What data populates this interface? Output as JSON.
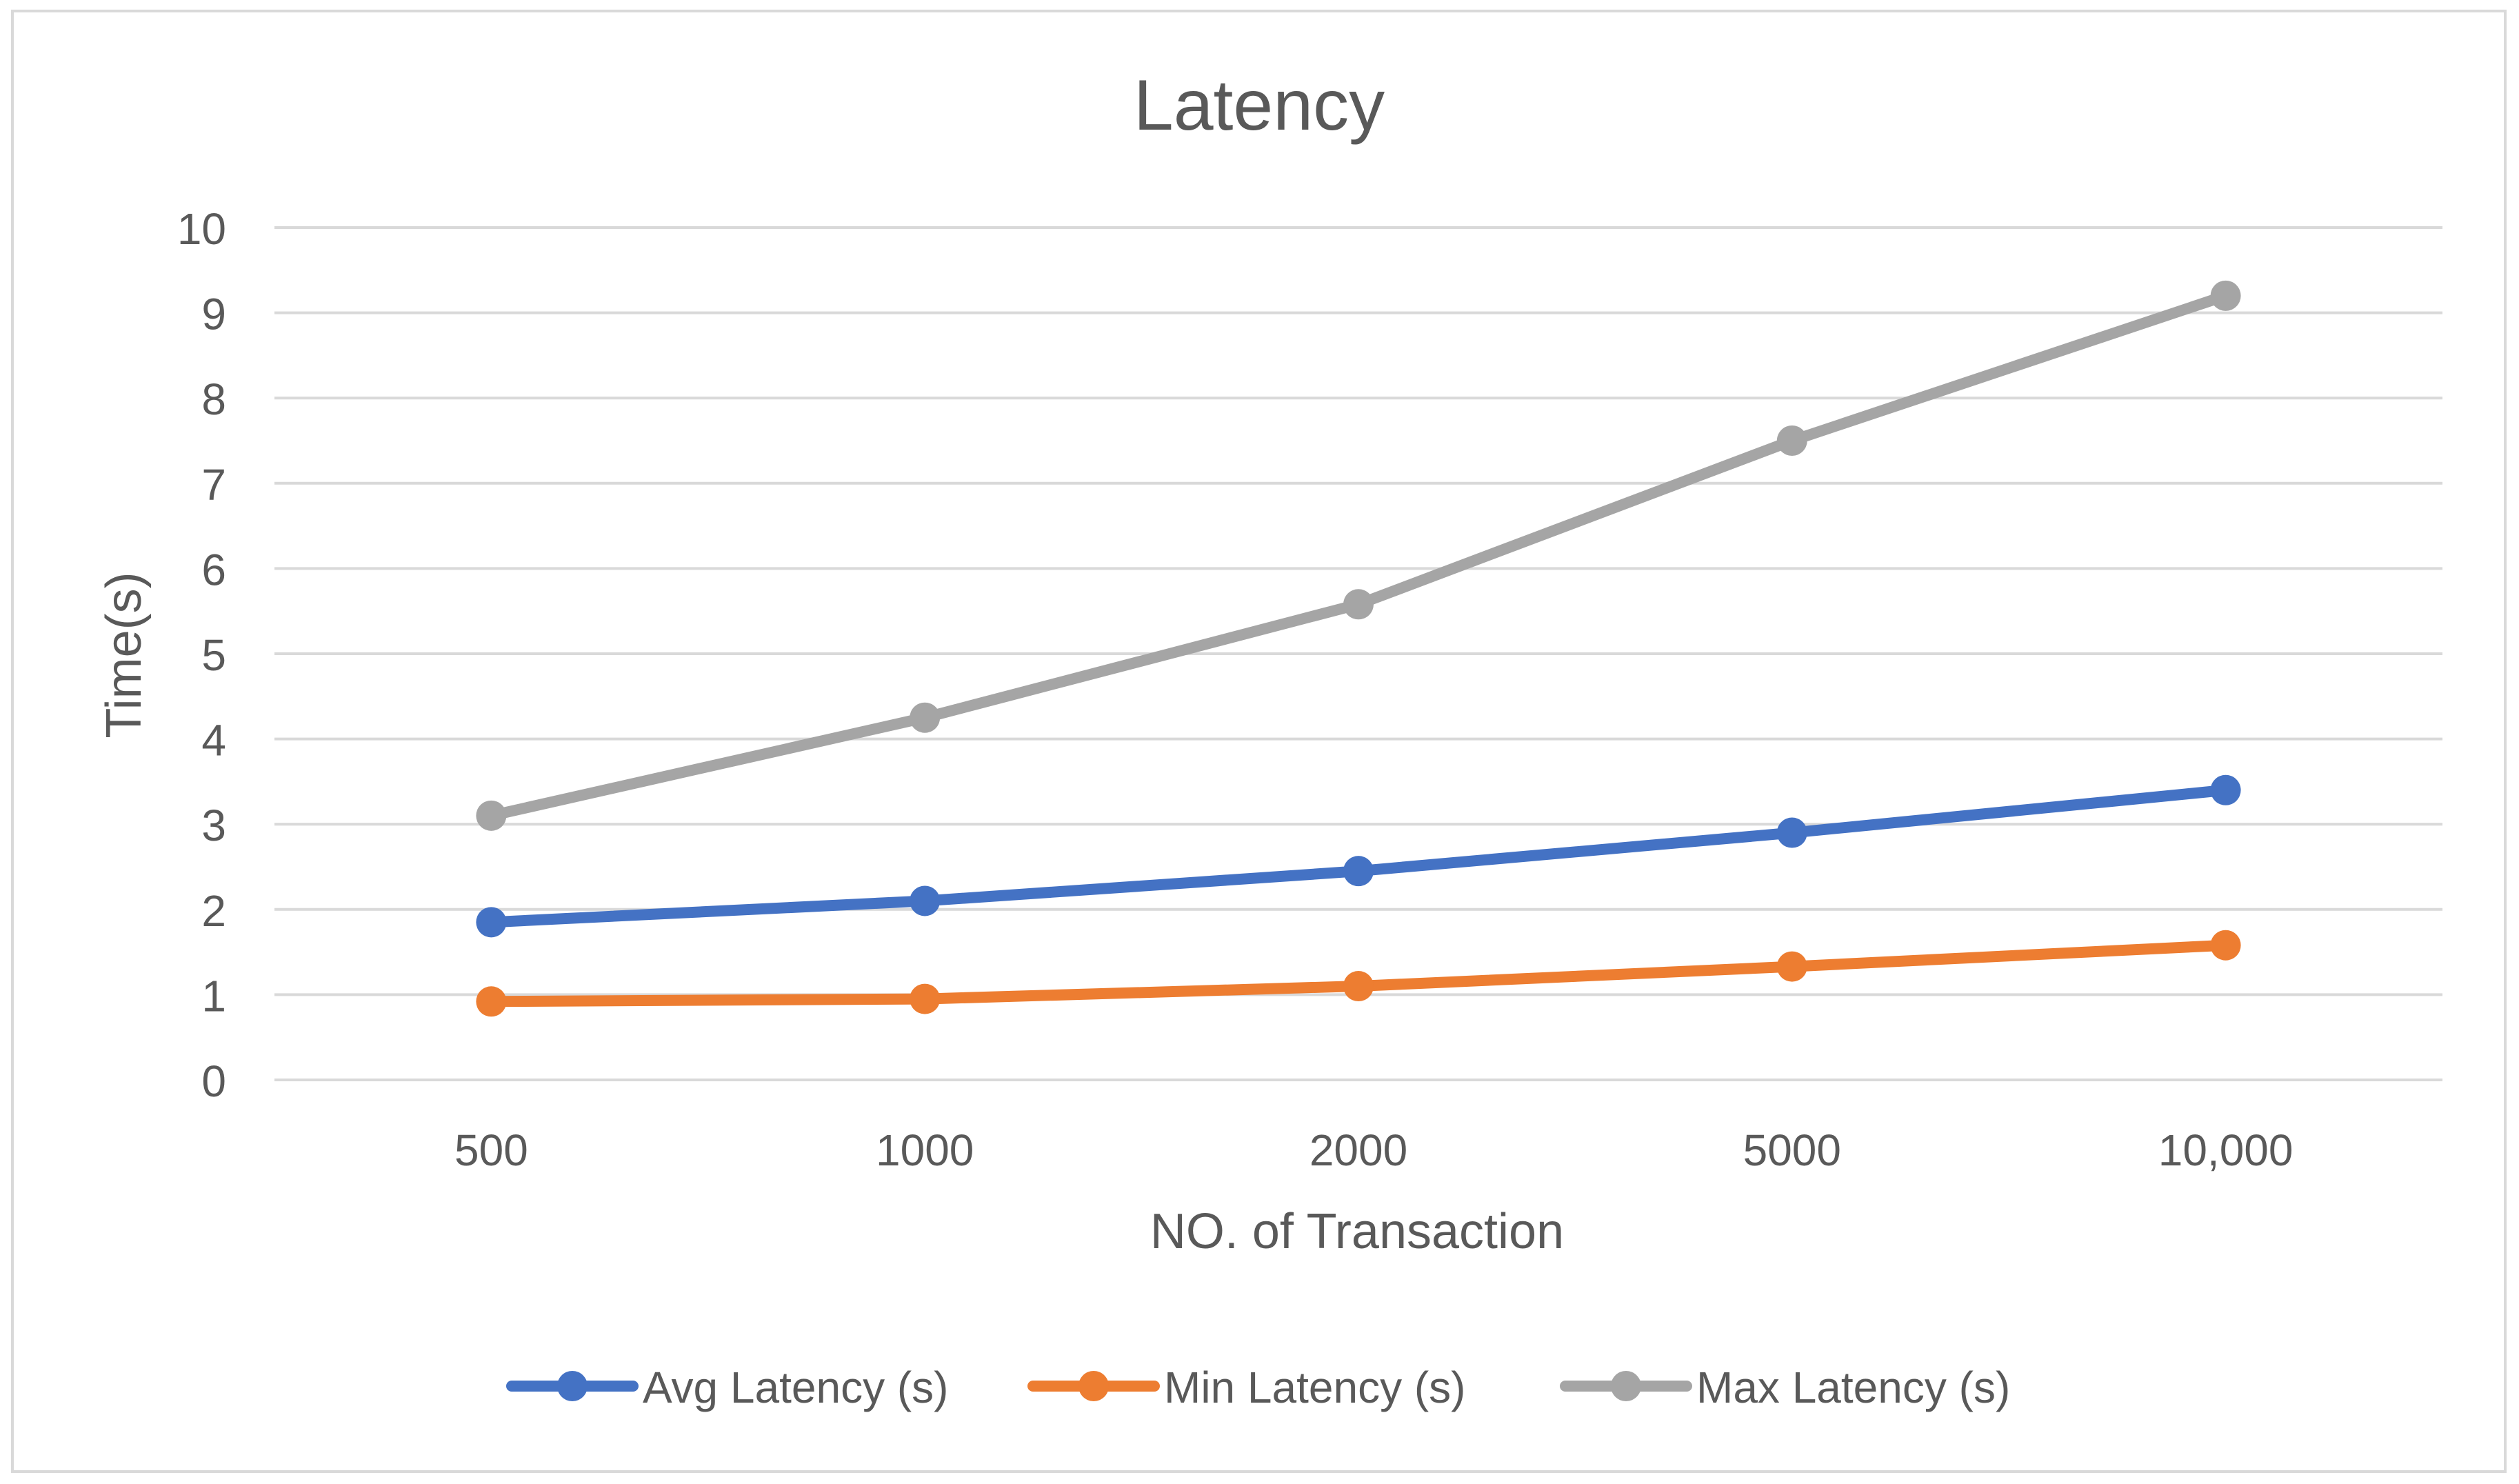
{
  "chart_data": {
    "type": "line",
    "title": "Latency",
    "xlabel": "NO. of Transaction",
    "ylabel": "Time(s)",
    "categories": [
      "500",
      "1000",
      "2000",
      "5000",
      "10,000"
    ],
    "ylim": [
      0,
      10
    ],
    "yticks": [
      "0",
      "1",
      "2",
      "3",
      "4",
      "5",
      "6",
      "7",
      "8",
      "9",
      "10"
    ],
    "grid": true,
    "legend_position": "bottom",
    "series": [
      {
        "name": "Avg Latency (s)",
        "color": "#4472c4",
        "values": [
          1.85,
          2.1,
          2.45,
          2.9,
          3.4
        ]
      },
      {
        "name": "Min Latency (s)",
        "color": "#ed7d31",
        "values": [
          0.92,
          0.95,
          1.1,
          1.33,
          1.58
        ]
      },
      {
        "name": "Max Latency (s)",
        "color": "#a5a5a5",
        "values": [
          3.1,
          4.25,
          5.58,
          7.5,
          9.2
        ]
      }
    ]
  }
}
